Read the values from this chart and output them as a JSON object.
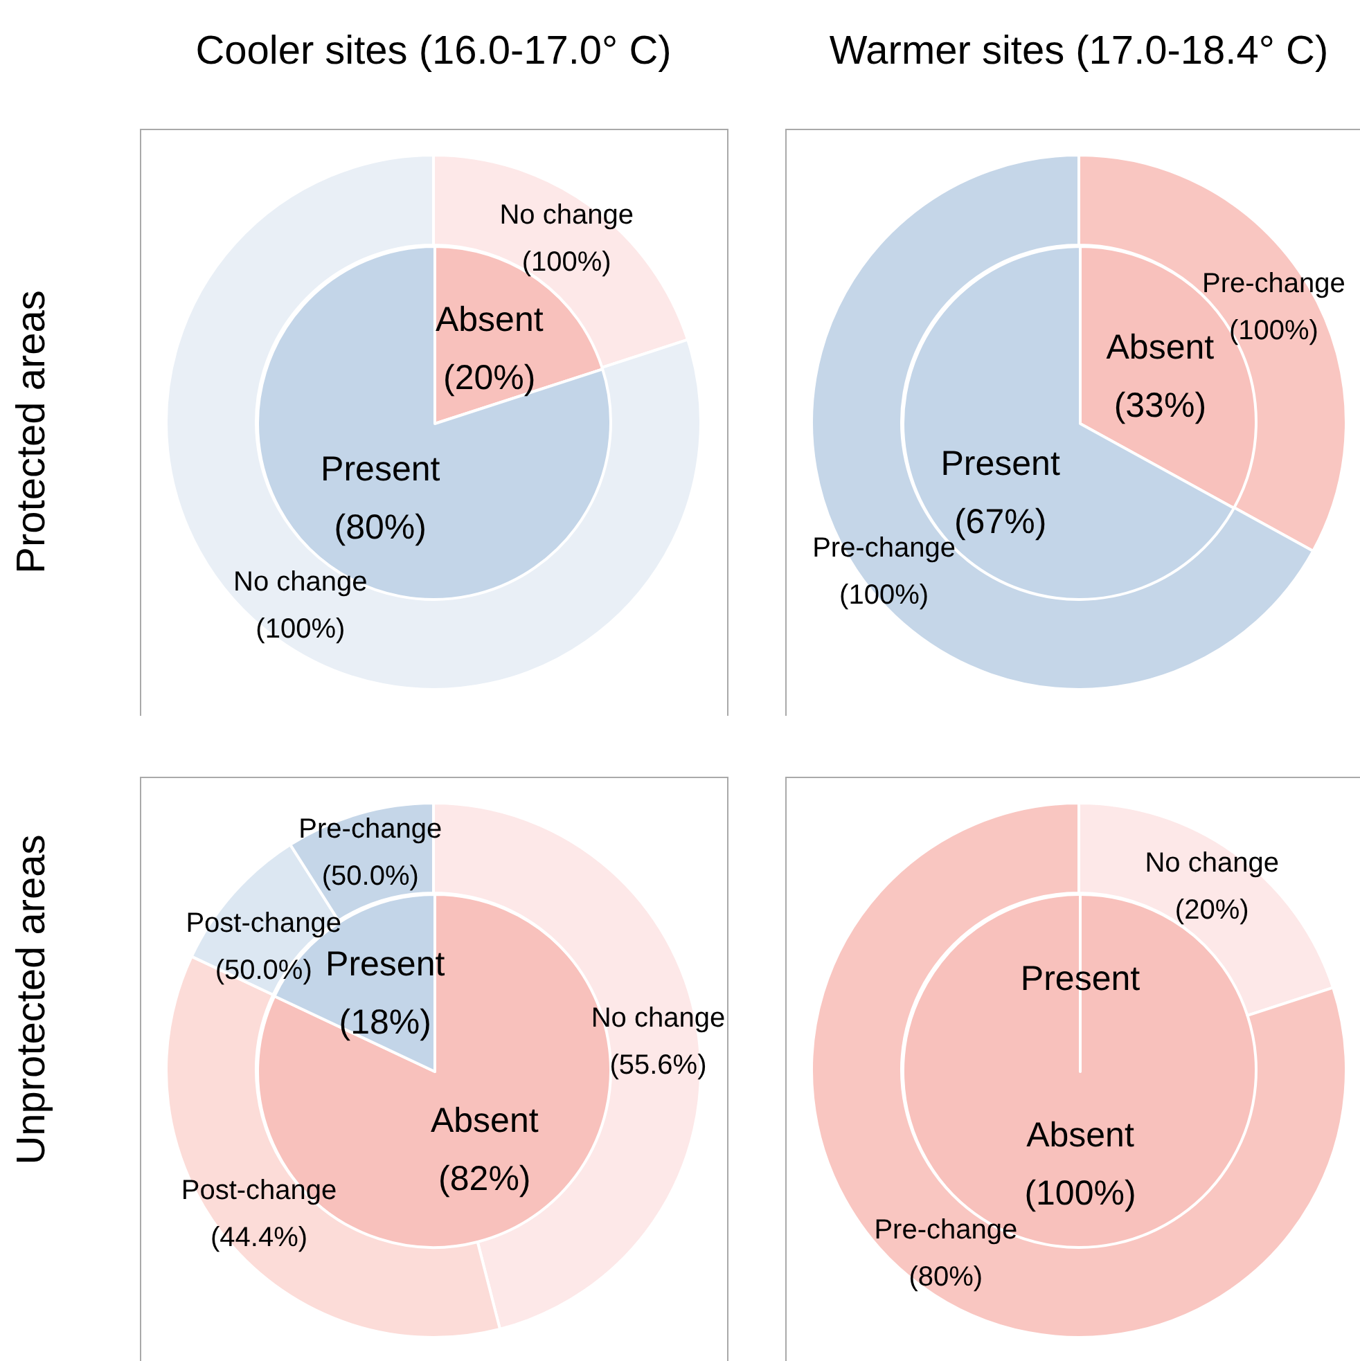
{
  "chart_data": [
    {
      "type": "donut",
      "title": "Cooler sites (16.0-17.0° C)",
      "ylabel": "Protected areas",
      "categories": [
        "No change (100%)",
        "No change (100%)"
      ],
      "values": [
        20,
        80
      ],
      "colors": [
        "#fde8e8",
        "#e9eff6"
      ]
    },
    {
      "type": "pie",
      "categories": [
        "Absent",
        "Present"
      ],
      "values": [
        20,
        80
      ],
      "value_labels": [
        "(20%)",
        "(80%)"
      ],
      "colors": [
        "#f8c1bc",
        "#c3d5e8"
      ]
    },
    {
      "type": "donut",
      "title": "Warmer sites (17.0-18.4° C)",
      "categories": [
        "Pre-change (100%)",
        "Pre-change (100%)"
      ],
      "values": [
        33,
        67
      ],
      "colors": [
        "#f9c6c1",
        "#c5d6e8"
      ]
    },
    {
      "type": "pie",
      "categories": [
        "Absent",
        "Present"
      ],
      "values": [
        33,
        67
      ],
      "value_labels": [
        "(33%)",
        "(67%)"
      ],
      "colors": [
        "#f8c1bc",
        "#c3d5e8"
      ]
    },
    {
      "type": "donut",
      "ylabel": "Unprotected areas",
      "categories": [
        "No change (55.6%)",
        "Post-change (44.4%)",
        "Post-change (50.0%)",
        "Pre-change (50.0%)"
      ],
      "values": [
        46,
        36,
        9,
        9
      ],
      "colors": [
        "#fde8e8",
        "#fcdcd8",
        "#dce7f2",
        "#c5d6e8"
      ]
    },
    {
      "type": "pie",
      "categories": [
        "Absent",
        "Present"
      ],
      "values": [
        82,
        18
      ],
      "value_labels": [
        "(82%)",
        "(18%)"
      ],
      "colors": [
        "#f8c1bc",
        "#c3d5e8"
      ]
    },
    {
      "type": "donut",
      "categories": [
        "No change (20%)",
        "Pre-change (80%)"
      ],
      "values": [
        20,
        80
      ],
      "colors": [
        "#fde8e8",
        "#f9c6c1"
      ]
    },
    {
      "type": "pie",
      "categories": [
        "Absent",
        "Present"
      ],
      "values": [
        100,
        0
      ],
      "value_labels": [
        "(100%)",
        null
      ],
      "colors": [
        "#f8c1bc",
        "#c3d5e8"
      ]
    }
  ]
}
